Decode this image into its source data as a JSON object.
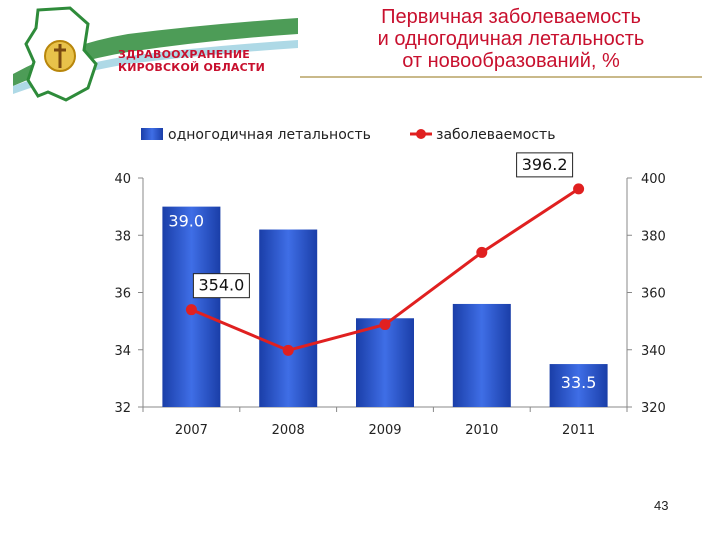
{
  "header": {
    "logo_text_line1": "ЗДРАВООХРАНЕНИЕ",
    "logo_text_line2": "КИРОВСКОЙ ОБЛАСТИ",
    "title_lines": [
      "Первичная заболеваемость",
      "и одногодичная летальность",
      "от новообразований, %"
    ]
  },
  "page_number": "43",
  "colors": {
    "bar": "#2650c8",
    "line": "#e02020",
    "title": "#c8102e"
  },
  "chart_data": {
    "type": "bar",
    "categories": [
      "2007",
      "2008",
      "2009",
      "2010",
      "2011"
    ],
    "series": [
      {
        "name": "одногодичная летальность",
        "type": "bar",
        "axis": "left",
        "values": [
          39.0,
          38.2,
          35.1,
          35.6,
          33.5
        ]
      },
      {
        "name": "заболеваемость",
        "type": "line",
        "axis": "right",
        "values": [
          354.0,
          339.8,
          348.8,
          374.0,
          396.2
        ]
      }
    ],
    "y_left": {
      "min": 32,
      "max": 40,
      "ticks": [
        "32",
        "34",
        "36",
        "38",
        "40"
      ]
    },
    "y_right": {
      "min": 320,
      "max": 400,
      "ticks": [
        "320",
        "340",
        "360",
        "380",
        "400"
      ]
    },
    "data_labels": [
      {
        "series": 0,
        "index": 0,
        "text": "39.0"
      },
      {
        "series": 1,
        "index": 0,
        "text": "354.0"
      },
      {
        "series": 1,
        "index": 4,
        "text": "396.2"
      },
      {
        "series": 0,
        "index": 4,
        "text": "33.5"
      }
    ],
    "legend": "top",
    "grid": false
  }
}
